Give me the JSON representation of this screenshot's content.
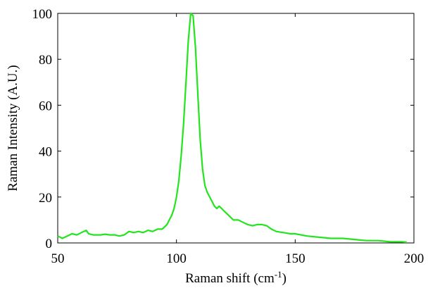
{
  "chart_data": {
    "type": "line",
    "title": "",
    "xlabel": "Raman shift (cm",
    "xlabel_sup": "-1",
    "xlabel_suffix": ")",
    "ylabel": "Raman Intensity (A.U.)",
    "xlim": [
      50,
      200
    ],
    "ylim": [
      0,
      100
    ],
    "xticks": [
      50,
      100,
      150,
      200
    ],
    "yticks": [
      0,
      20,
      40,
      60,
      80,
      100
    ],
    "xtick_labels": [
      "50",
      "100",
      "150",
      "200"
    ],
    "ytick_labels": [
      "0",
      "20",
      "40",
      "60",
      "80",
      "100"
    ],
    "grid": false,
    "line_color": "#22e51e",
    "series": [
      {
        "x": [
          50,
          52,
          54,
          56,
          58,
          60,
          62,
          63,
          65,
          68,
          70,
          72,
          74,
          76,
          78,
          80,
          82,
          84,
          86,
          88,
          90,
          92,
          94,
          96,
          97,
          98,
          99,
          100,
          101,
          102,
          103,
          104,
          105,
          106,
          107,
          108,
          109,
          110,
          111,
          112,
          113,
          114,
          115,
          116,
          117,
          118,
          119,
          120,
          122,
          124,
          126,
          128,
          130,
          132,
          134,
          136,
          138,
          140,
          142,
          145,
          148,
          150,
          155,
          160,
          165,
          170,
          175,
          180,
          185,
          190,
          195,
          197
        ],
        "y": [
          3,
          2,
          3,
          4,
          3.5,
          4.5,
          5.5,
          4,
          3.5,
          3.5,
          3.8,
          3.5,
          3.5,
          3,
          3.5,
          5,
          4.5,
          5,
          4.5,
          5.5,
          5,
          6,
          6,
          8,
          10,
          12,
          15,
          20,
          27,
          38,
          52,
          70,
          88,
          100,
          99,
          85,
          65,
          45,
          32,
          25,
          22,
          20,
          18,
          16,
          15,
          16,
          15,
          14,
          12,
          10,
          10,
          9,
          8,
          7.5,
          8,
          8,
          7.5,
          6,
          5,
          4.5,
          4,
          4,
          3,
          2.5,
          2,
          2,
          1.5,
          1,
          1,
          0.5,
          0.5,
          0.3
        ]
      }
    ]
  }
}
